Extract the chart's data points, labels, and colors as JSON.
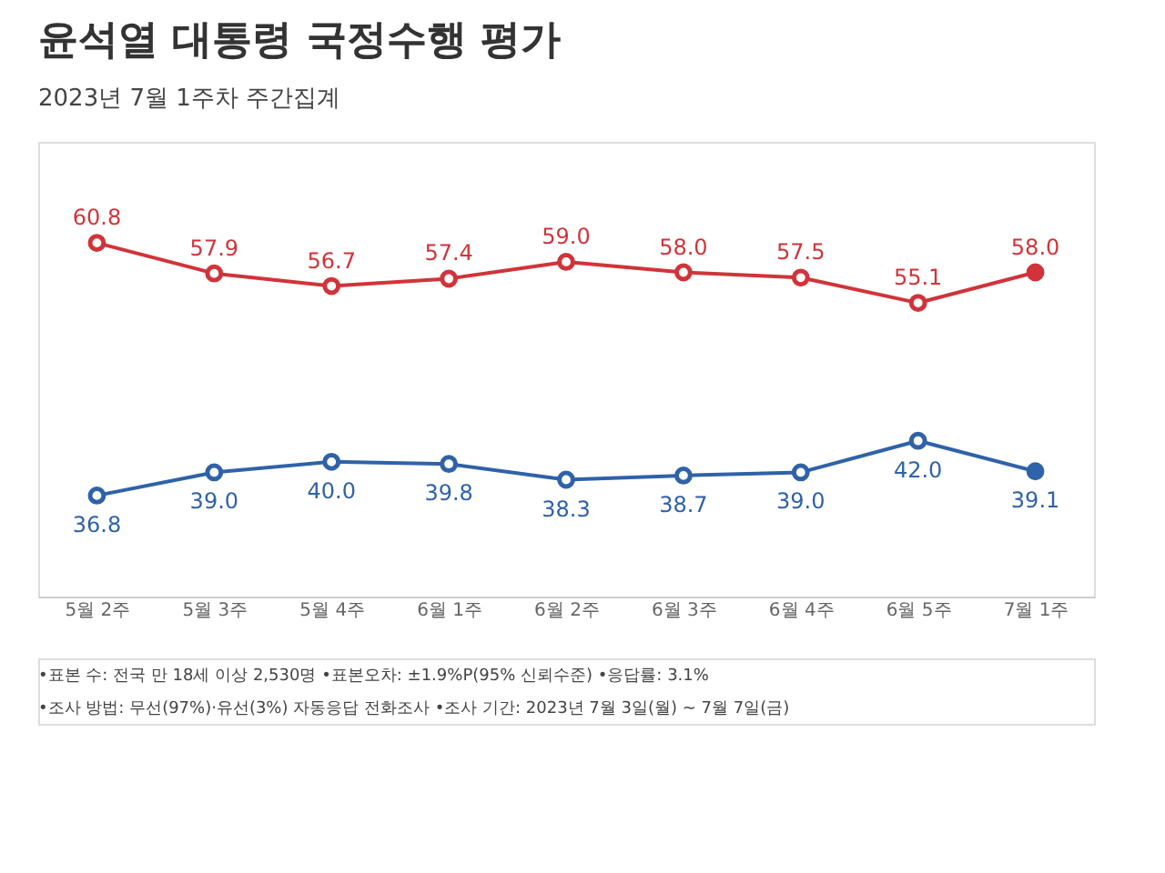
{
  "chart_data": {
    "type": "line",
    "title": "윤석열 대통령 국정수행 평가",
    "subtitle": "2023년 7월 1주차 주간집계",
    "categories": [
      "5월 2주",
      "5월 3주",
      "5월 4주",
      "6월 1주",
      "6월 2주",
      "6월 3주",
      "6월 4주",
      "6월 5주",
      "7월 1주"
    ],
    "series": [
      {
        "color": "#d0343a",
        "values": [
          60.8,
          57.9,
          56.7,
          57.4,
          59.0,
          58.0,
          57.5,
          55.1,
          58.0
        ],
        "value_labels": [
          "60.8",
          "57.9",
          "56.7",
          "57.4",
          "59.0",
          "58.0",
          "57.5",
          "55.1",
          "58.0"
        ]
      },
      {
        "color": "#2f62a8",
        "values": [
          36.8,
          39.0,
          40.0,
          39.8,
          38.3,
          38.7,
          39.0,
          42.0,
          39.1
        ],
        "value_labels": [
          "36.8",
          "39.0",
          "40.0",
          "39.8",
          "38.3",
          "38.7",
          "39.0",
          "42.0",
          "39.1"
        ]
      }
    ],
    "marker": "circle",
    "grid": false,
    "legend": false,
    "annotations": [
      "•표본 수: 전국 만 18세 이상 2,530명 •표본오차: ±1.9%P(95% 신뢰수준) •응답률: 3.1%",
      "•조사 방법: 무선(97%)·유선(3%) 자동응답 전화조사 •조사 기간: 2023년 7월 3일(월) ~ 7월 7일(금)"
    ]
  }
}
